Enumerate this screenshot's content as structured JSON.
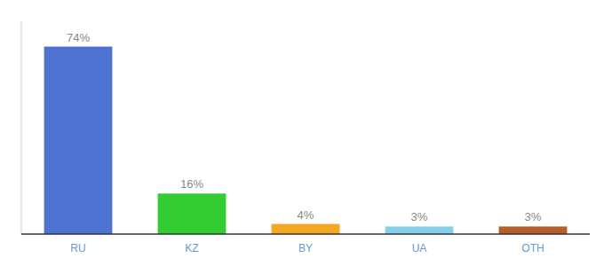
{
  "chart_data": {
    "type": "bar",
    "categories": [
      "RU",
      "KZ",
      "BY",
      "UA",
      "OTH"
    ],
    "values": [
      74,
      16,
      4,
      3,
      3
    ],
    "value_labels": [
      "74%",
      "16%",
      "4%",
      "3%",
      "3%"
    ],
    "colors": [
      "#4d72d1",
      "#33cc33",
      "#f5a623",
      "#87ceeb",
      "#b85c2a"
    ],
    "ylim": [
      0,
      84
    ],
    "data_labels": true,
    "tick_labels": "x",
    "grid": false
  }
}
